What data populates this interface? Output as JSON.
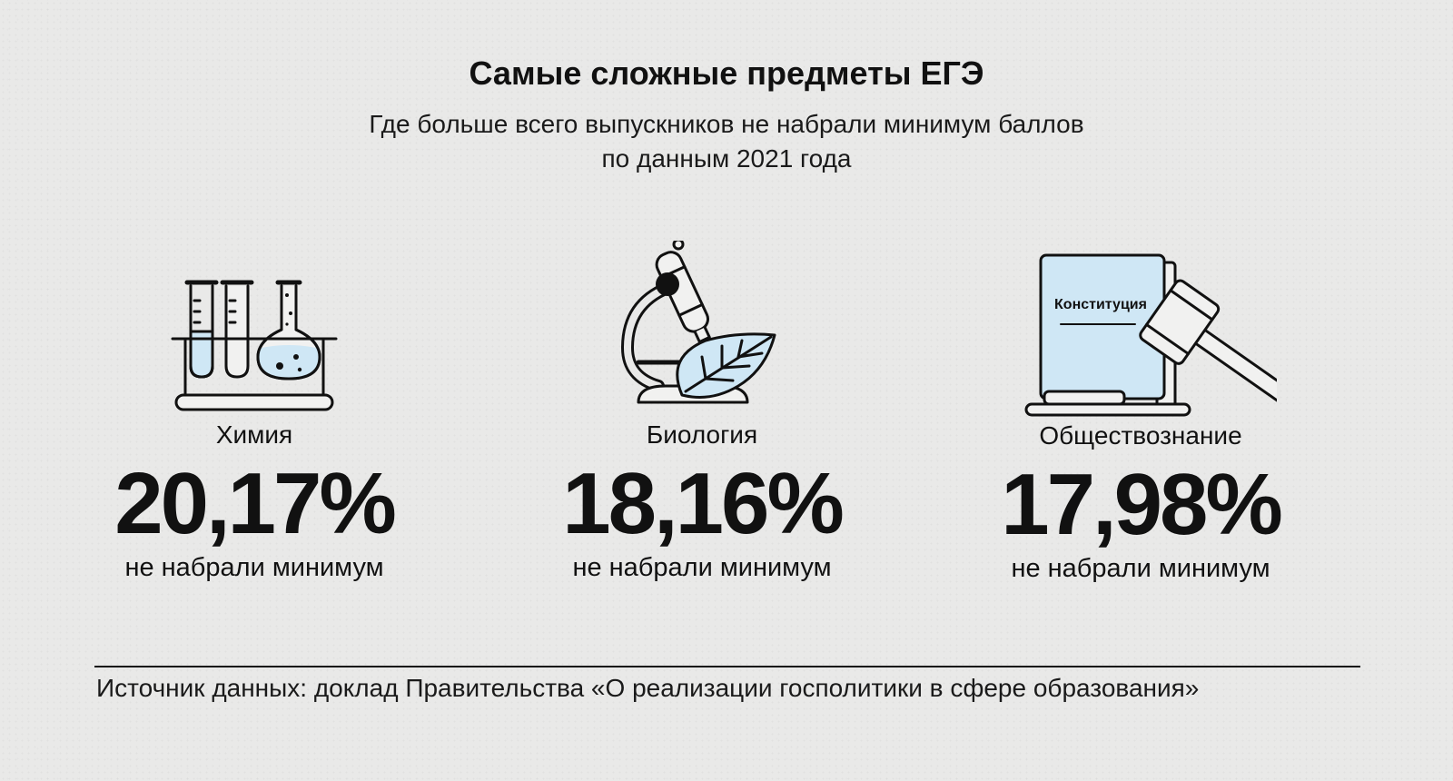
{
  "header": {
    "title": "Самые сложные предметы ЕГЭ",
    "subtitle_line1": "Где больше всего выпускников не набрали минимум баллов",
    "subtitle_line2": "по данным 2021 года"
  },
  "chart_data": {
    "type": "table",
    "title": "Самые сложные предметы ЕГЭ",
    "subtitle": "Где больше всего выпускников не набрали минимум баллов по данным 2021 года",
    "unit": "%",
    "categories": [
      "Химия",
      "Биология",
      "Обществознание"
    ],
    "values": [
      20.17,
      18.16,
      17.98
    ],
    "value_labels": [
      "20,17%",
      "18,16%",
      "17,98%"
    ],
    "caption": "не набрали минимум",
    "items": [
      {
        "subject": "Химия",
        "value_label": "20,17%",
        "caption": "не набрали минимум",
        "icon": "test-tubes-icon"
      },
      {
        "subject": "Биология",
        "value_label": "18,16%",
        "caption": "не набрали минимум",
        "icon": "microscope-leaf-icon"
      },
      {
        "subject": "Обществознание",
        "value_label": "17,98%",
        "caption": "не набрали минимум",
        "icon": "constitution-gavel-icon",
        "icon_text": "Конституция"
      }
    ]
  },
  "colors": {
    "background": "#e9e9e8",
    "accent_blue": "#cfe7f5",
    "ink": "#111111"
  },
  "footer": {
    "source": "Источник данных: доклад Правительства «О реализации госполитики в сфере образования»"
  }
}
